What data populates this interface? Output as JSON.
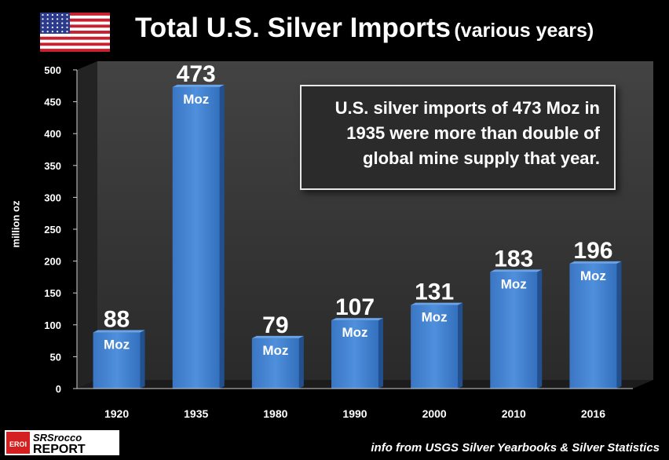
{
  "title": {
    "main": "Total U.S. Silver Imports",
    "sub": "(various years)"
  },
  "note": "U.S. silver imports of 473 Moz in 1935 were more than double of global mine supply that year.",
  "source": "info from USGS Silver Yearbooks & Silver Statistics",
  "logo": {
    "top": "SRSrocco",
    "bottom": "REPORT",
    "badge": "EROI"
  },
  "colors": {
    "bar": "#3f7fd0",
    "bar_top": "#6aa3e8",
    "bar_side": "#224f8e",
    "wall": "#3b3b3b",
    "background": "#000000"
  },
  "chart_data": {
    "type": "bar",
    "title": "Total U.S. Silver Imports (various years)",
    "ylabel": "million  oz",
    "categories": [
      "1920",
      "1935",
      "1980",
      "1990",
      "2000",
      "2010",
      "2016"
    ],
    "values": [
      88,
      473,
      79,
      107,
      131,
      183,
      196
    ],
    "value_unit_label": "Moz",
    "ylim": [
      0,
      500
    ],
    "yticks": [
      0,
      50,
      100,
      150,
      200,
      250,
      300,
      350,
      400,
      450,
      500
    ],
    "grid": false,
    "legend": "none"
  }
}
